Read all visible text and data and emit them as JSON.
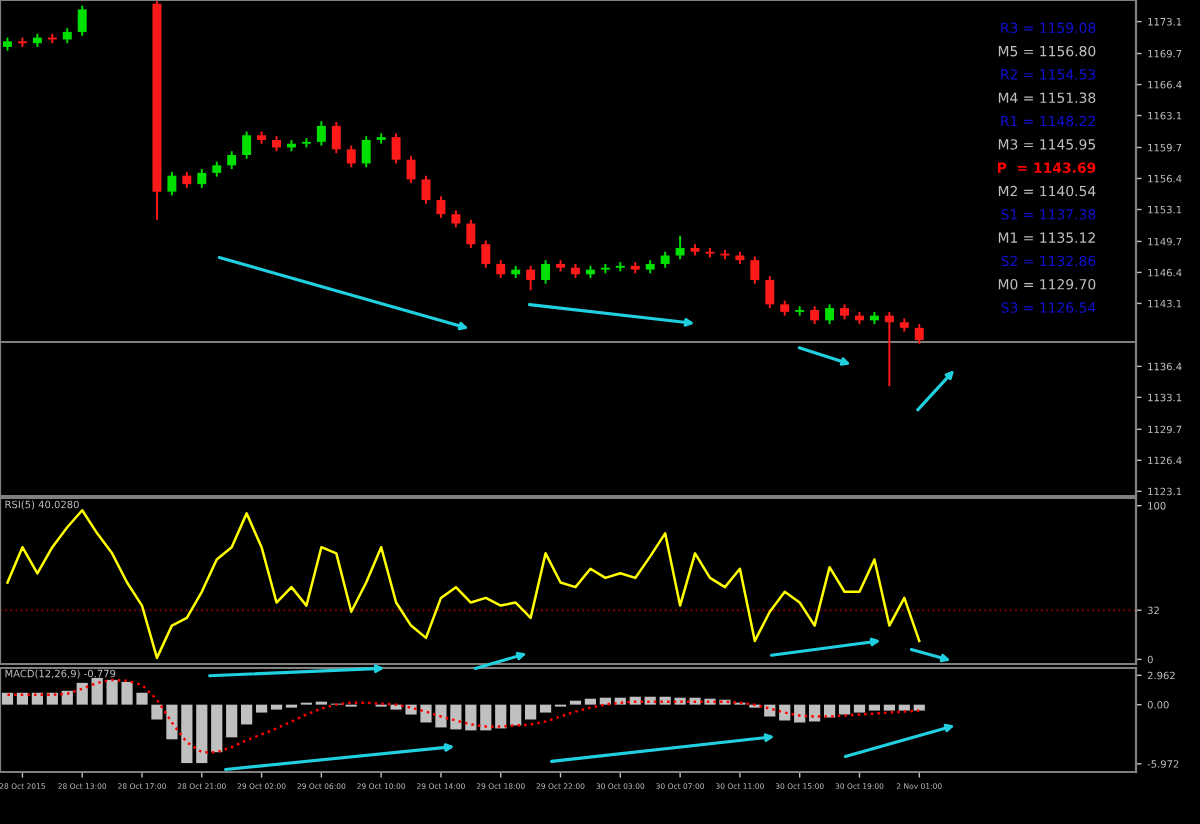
{
  "chart_data": [
    {
      "type": "candlestick",
      "categories": [
        null,
        null,
        null,
        null,
        null,
        null,
        null,
        null,
        null,
        null,
        null,
        null,
        null,
        null,
        null,
        null,
        null,
        null,
        null,
        null,
        null,
        null,
        null,
        null,
        null,
        null,
        null,
        null,
        null,
        null,
        null,
        null,
        null,
        null,
        null,
        null,
        null,
        null,
        null,
        null,
        null,
        null,
        null,
        null,
        null,
        null,
        null,
        null,
        null,
        null,
        null,
        null,
        null,
        null,
        null,
        null,
        null,
        null,
        null,
        null,
        null,
        null,
        null,
        null,
        null,
        null,
        null,
        null,
        null,
        null,
        null,
        null,
        null,
        null,
        null,
        null
      ],
      "ohlc": [
        [
          1170.4,
          1171.4,
          1170.0,
          1171.0
        ],
        [
          1171.0,
          1171.4,
          1170.4,
          1170.8
        ],
        [
          1170.8,
          1171.8,
          1170.4,
          1171.4
        ],
        [
          1171.4,
          1171.8,
          1170.8,
          1171.2
        ],
        [
          1171.2,
          1172.4,
          1170.8,
          1172.0
        ],
        [
          1172.0,
          1174.8,
          1171.6,
          1174.4
        ],
        null,
        null,
        null,
        null,
        [
          1175.0,
          1175.3,
          1152.0,
          1155.0
        ],
        [
          1155.0,
          1157.1,
          1154.6,
          1156.7
        ],
        [
          1156.7,
          1157.1,
          1155.4,
          1155.8
        ],
        [
          1155.8,
          1157.4,
          1155.4,
          1157.0
        ],
        [
          1157.0,
          1158.2,
          1156.6,
          1157.8
        ],
        [
          1157.8,
          1159.3,
          1157.4,
          1158.9
        ],
        [
          1158.9,
          1161.4,
          1158.5,
          1161.0
        ],
        [
          1161.0,
          1161.4,
          1160.1,
          1160.5
        ],
        [
          1160.5,
          1160.9,
          1159.3,
          1159.7
        ],
        [
          1159.7,
          1160.5,
          1159.3,
          1160.1
        ],
        [
          1160.1,
          1160.7,
          1159.7,
          1160.3
        ],
        [
          1160.3,
          1162.5,
          1159.9,
          1162.0
        ],
        [
          1162.0,
          1162.4,
          1159.1,
          1159.5
        ],
        [
          1159.5,
          1159.9,
          1157.6,
          1158.0
        ],
        [
          1158.0,
          1160.9,
          1157.6,
          1160.5
        ],
        [
          1160.5,
          1161.2,
          1160.1,
          1160.8
        ],
        [
          1160.8,
          1161.2,
          1158.0,
          1158.4
        ],
        [
          1158.4,
          1158.8,
          1155.9,
          1156.3
        ],
        [
          1156.3,
          1156.7,
          1153.7,
          1154.1
        ],
        [
          1154.1,
          1154.5,
          1152.2,
          1152.6
        ],
        [
          1152.6,
          1153.0,
          1151.2,
          1151.6
        ],
        [
          1151.6,
          1152.0,
          1149.0,
          1149.4
        ],
        [
          1149.4,
          1149.8,
          1146.9,
          1147.3
        ],
        [
          1147.3,
          1147.7,
          1145.8,
          1146.2
        ],
        [
          1146.2,
          1147.1,
          1145.8,
          1146.7
        ],
        [
          1146.7,
          1147.1,
          1144.5,
          1145.6
        ],
        [
          1145.6,
          1147.7,
          1145.2,
          1147.3
        ],
        [
          1147.3,
          1147.7,
          1146.5,
          1146.9
        ],
        [
          1146.9,
          1147.3,
          1145.8,
          1146.2
        ],
        [
          1146.2,
          1147.1,
          1145.8,
          1146.7
        ],
        [
          1146.7,
          1147.3,
          1146.3,
          1146.9
        ],
        [
          1146.9,
          1147.5,
          1146.5,
          1147.1
        ],
        [
          1147.1,
          1147.5,
          1146.3,
          1146.7
        ],
        [
          1146.7,
          1147.7,
          1146.3,
          1147.3
        ],
        [
          1147.3,
          1148.6,
          1146.9,
          1148.2
        ],
        [
          1148.2,
          1150.3,
          1147.8,
          1149.0
        ],
        [
          1149.0,
          1149.4,
          1148.2,
          1148.6
        ],
        [
          1148.6,
          1149.0,
          1148.0,
          1148.4
        ],
        [
          1148.4,
          1148.8,
          1147.8,
          1148.2
        ],
        [
          1148.2,
          1148.6,
          1147.3,
          1147.7
        ],
        [
          1147.7,
          1148.1,
          1145.2,
          1145.6
        ],
        [
          1145.6,
          1146.0,
          1142.6,
          1143.0
        ],
        [
          1143.0,
          1143.4,
          1141.8,
          1142.2
        ],
        [
          1142.2,
          1142.8,
          1141.8,
          1142.4
        ],
        [
          1142.4,
          1142.8,
          1140.9,
          1141.3
        ],
        [
          1141.3,
          1143.0,
          1140.9,
          1142.6
        ],
        [
          1142.6,
          1143.0,
          1141.4,
          1141.8
        ],
        [
          1141.8,
          1142.2,
          1140.9,
          1141.3
        ],
        [
          1141.3,
          1142.2,
          1140.9,
          1141.8
        ],
        [
          1141.8,
          1142.2,
          1134.3,
          1141.1
        ],
        [
          1141.1,
          1141.5,
          1140.1,
          1140.5
        ],
        [
          1140.5,
          1140.9,
          1138.8,
          1139.2
        ],
        null,
        null,
        null,
        null,
        null,
        null,
        null,
        null,
        null,
        null,
        null,
        null,
        null,
        null
      ],
      "ylim": [
        1122.6,
        1175.4
      ],
      "yticks": [
        1173.1,
        1169.7,
        1166.4,
        1163.1,
        1159.7,
        1156.4,
        1153.1,
        1149.7,
        1146.4,
        1143.1,
        1136.4,
        1133.1,
        1129.7,
        1126.4,
        1123.1
      ],
      "ref_lines": [
        {
          "axis": "y",
          "value": 1139.0,
          "color": "#808080"
        }
      ],
      "annotations": [
        "R3 = 1159.08",
        "M5 = 1156.80",
        "R2 = 1154.53",
        "M4 = 1151.38",
        "R1 = 1148.22",
        "M3 = 1145.95",
        "P  = 1143.69",
        "M2 = 1140.54",
        "S1 = 1137.38",
        "M1 = 1135.12",
        "S2 = 1132.86",
        "M0 = 1129.70",
        "S3 = 1126.54"
      ],
      "tick_labels": "y"
    },
    {
      "type": "line",
      "title": "RSI(5) 40.0280",
      "categories": [
        null,
        null,
        null,
        null,
        null,
        null,
        null,
        null,
        null,
        null,
        null,
        null,
        null,
        null,
        null,
        null,
        null,
        null,
        null,
        null,
        null,
        null,
        null,
        null,
        null,
        null,
        null,
        null,
        null,
        null,
        null,
        null,
        null,
        null,
        null,
        null,
        null,
        null,
        null,
        null,
        null,
        null,
        null,
        null,
        null,
        null,
        null,
        null,
        null,
        null,
        null,
        null,
        null,
        null,
        null,
        null,
        null,
        null,
        null,
        null,
        null,
        null,
        null,
        null,
        null,
        null,
        null,
        null,
        null,
        null,
        null,
        null,
        null,
        null,
        null,
        null
      ],
      "series": [
        {
          "color": "#ffff00",
          "values": [
            50,
            73,
            56,
            73,
            86,
            97,
            82,
            69,
            50,
            35,
            1,
            22,
            27,
            44,
            65,
            73,
            95,
            73,
            37,
            47,
            35,
            73,
            69,
            31,
            50,
            73,
            37,
            22,
            14,
            40,
            47,
            37,
            40,
            35,
            37,
            27,
            69,
            50,
            47,
            59,
            53,
            56,
            53,
            67,
            82,
            35,
            69,
            53,
            47,
            59,
            12,
            31,
            44,
            37,
            22,
            60,
            44,
            44,
            65,
            22,
            40,
            12,
            null,
            null,
            null,
            null,
            null,
            null,
            null,
            null,
            null,
            null,
            null,
            null,
            null,
            null
          ]
        }
      ],
      "ylim": [
        -3,
        105
      ],
      "yticks": [
        100,
        32,
        0
      ],
      "ref_lines": [
        {
          "axis": "y",
          "value": 32,
          "color": "#800000",
          "line_style": "dotted"
        }
      ],
      "tick_labels": "y"
    },
    {
      "type": "bar",
      "title": "MACD(12,26,9) -0.779",
      "categories": [
        null,
        "28 Oct 2015",
        null,
        null,
        null,
        "28 Oct 13:00",
        null,
        null,
        null,
        "28 Oct 17:00",
        null,
        null,
        null,
        "28 Oct 21:00",
        null,
        null,
        null,
        "29 Oct 02:00",
        null,
        null,
        null,
        "29 Oct 06:00",
        null,
        null,
        null,
        "29 Oct 10:00",
        null,
        null,
        null,
        "29 Oct 14:00",
        null,
        null,
        null,
        "29 Oct 18:00",
        null,
        null,
        null,
        "29 Oct 22:00",
        null,
        null,
        null,
        "30 Oct 03:00",
        null,
        null,
        null,
        "30 Oct 07:00",
        null,
        null,
        null,
        "30 Oct 11:00",
        null,
        null,
        null,
        "30 Oct 15:00",
        null,
        null,
        null,
        "30 Oct 19:00",
        null,
        null,
        null,
        "2 Nov 01:00",
        null,
        null,
        null,
        null,
        null,
        null,
        null,
        null,
        null,
        null,
        null,
        null,
        null,
        null
      ],
      "series": [
        {
          "type": "bar",
          "color": "#c0c0c0",
          "values": [
            1.2,
            1.2,
            1.2,
            1.2,
            1.4,
            2.2,
            2.7,
            2.5,
            2.3,
            1.2,
            -1.5,
            -3.5,
            -5.9,
            -5.9,
            -4.8,
            -3.3,
            -2.0,
            -0.8,
            -0.5,
            -0.3,
            0.2,
            0.3,
            0.1,
            -0.2,
            0.0,
            -0.2,
            -0.5,
            -1.0,
            -1.8,
            -2.3,
            -2.5,
            -2.6,
            -2.6,
            -2.4,
            -2.1,
            -1.5,
            -0.8,
            -0.2,
            0.4,
            0.6,
            0.7,
            0.7,
            0.8,
            0.8,
            0.8,
            0.7,
            0.7,
            0.6,
            0.5,
            0.2,
            -0.3,
            -1.2,
            -1.6,
            -1.8,
            -1.7,
            -1.3,
            -1.0,
            -0.8,
            -0.6,
            -0.6,
            -0.6,
            -0.6,
            null,
            null,
            null,
            null,
            null,
            null,
            null,
            null,
            null,
            null,
            null,
            null,
            null,
            null
          ]
        },
        {
          "type": "line",
          "color": "#ff0000",
          "line_style": "dotted",
          "values": [
            1.0,
            1.0,
            1.0,
            1.0,
            1.1,
            1.6,
            2.2,
            2.5,
            2.4,
            2.0,
            0.5,
            -1.8,
            -3.8,
            -4.8,
            -4.8,
            -4.3,
            -3.6,
            -3.0,
            -2.4,
            -1.7,
            -1.0,
            -0.4,
            0.0,
            0.2,
            0.2,
            0.1,
            0.0,
            -0.3,
            -0.7,
            -1.2,
            -1.6,
            -2.0,
            -2.2,
            -2.2,
            -2.1,
            -2.0,
            -1.7,
            -1.2,
            -0.7,
            -0.3,
            0.0,
            0.2,
            0.3,
            0.3,
            0.3,
            0.3,
            0.3,
            0.3,
            0.3,
            0.2,
            0.0,
            -0.4,
            -0.8,
            -1.1,
            -1.2,
            -1.2,
            -1.1,
            -1.0,
            -0.9,
            -0.8,
            -0.7,
            -0.6,
            null,
            null,
            null,
            null,
            null,
            null,
            null,
            null,
            null,
            null,
            null,
            null,
            null,
            null
          ]
        }
      ],
      "ylim": [
        -6.8,
        3.7
      ],
      "yticks": [
        2.962,
        {
          "value": 0,
          "label": "0.00"
        },
        -5.972
      ]
    }
  ]
}
